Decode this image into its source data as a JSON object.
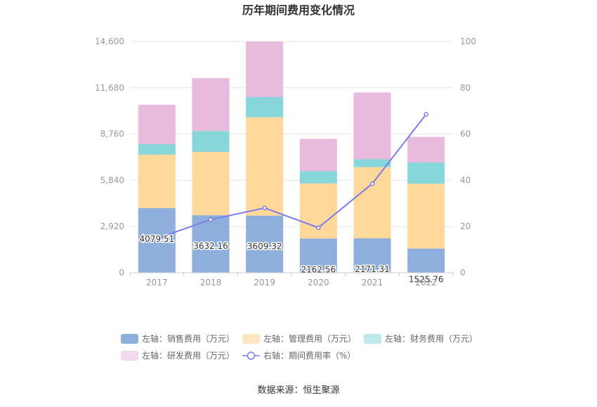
{
  "chart_data": {
    "type": "bar",
    "title": "历年期间费用变化情况",
    "categories": [
      "2017",
      "2018",
      "2019",
      "2020",
      "2021",
      "2022"
    ],
    "left_axis": {
      "min": 0,
      "max": 14600,
      "ticks": [
        "0",
        "2,920",
        "5,840",
        "8,760",
        "11,680",
        "14,600"
      ],
      "tick_values": [
        0,
        2920,
        5840,
        8760,
        11680,
        14600
      ]
    },
    "right_axis": {
      "min": 0,
      "max": 100,
      "ticks": [
        "0",
        "20",
        "40",
        "60",
        "80",
        "100"
      ],
      "tick_values": [
        0,
        20,
        40,
        60,
        80,
        100
      ]
    },
    "grid": true,
    "legend_position": "bottom",
    "series": [
      {
        "name": "左轴：销售费用（万元）",
        "type": "bar",
        "axis": "left",
        "color": "#8eaedb",
        "values": [
          4079.51,
          3632.16,
          3609.32,
          2162.56,
          2171.31,
          1525.76
        ],
        "labels": [
          "4079.51",
          "3632.16",
          "3609.32",
          "2162.56",
          "2171.31",
          "1525.76"
        ]
      },
      {
        "name": "左轴：管理费用（万元）",
        "type": "bar",
        "axis": "left",
        "color": "#fed899",
        "values": [
          3380,
          4000,
          6210,
          3480,
          4500,
          4100
        ]
      },
      {
        "name": "左轴：财务费用（万元）",
        "type": "bar",
        "axis": "left",
        "color": "#87d6da",
        "values": [
          660,
          1320,
          1280,
          770,
          500,
          1340
        ]
      },
      {
        "name": "左轴：研发费用（万元）",
        "type": "bar",
        "axis": "left",
        "color": "#e8badb",
        "values": [
          2480,
          3330,
          3500,
          2040,
          4210,
          1610
        ]
      },
      {
        "name": "右轴：期间费用率（%）",
        "type": "line",
        "axis": "right",
        "color": "#7b7cf0",
        "values": [
          14.8,
          23,
          28,
          19.5,
          38.5,
          68.5
        ]
      }
    ]
  },
  "source": "数据来源：恒生聚源"
}
